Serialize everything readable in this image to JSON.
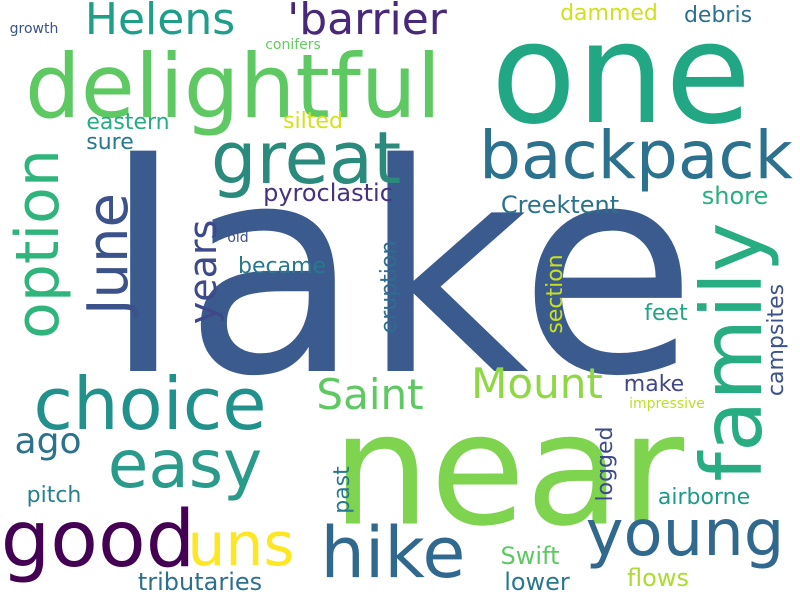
{
  "words": [
    {
      "text": "lake",
      "color": "#3b5b8f"
    },
    {
      "text": "near",
      "color": "#7ed34f"
    },
    {
      "text": "one",
      "color": "#22a784"
    },
    {
      "text": "delightful",
      "color": "#5ec962"
    },
    {
      "text": "great",
      "color": "#2a8b7c"
    },
    {
      "text": "backpack",
      "color": "#2c718e"
    },
    {
      "text": "choice",
      "color": "#21918c"
    },
    {
      "text": "family",
      "color": "#27ad81"
    },
    {
      "text": "good",
      "color": "#440154"
    },
    {
      "text": "uns",
      "color": "#fde725"
    },
    {
      "text": "hike",
      "color": "#30688e"
    },
    {
      "text": "young",
      "color": "#31688e"
    },
    {
      "text": "easy",
      "color": "#2a9a8a"
    },
    {
      "text": "option",
      "color": "#2fb47c"
    },
    {
      "text": "June",
      "color": "#3b528b"
    },
    {
      "text": "Helens",
      "color": "#1f9e89"
    },
    {
      "text": "'barrier",
      "color": "#482878"
    },
    {
      "text": "Mount",
      "color": "#8fd744"
    },
    {
      "text": "Saint",
      "color": "#5ec962"
    },
    {
      "text": "years",
      "color": "#3e4989"
    },
    {
      "text": "ago",
      "color": "#2c728e"
    },
    {
      "text": "pyroclastic",
      "color": "#46327e"
    },
    {
      "text": "Creektent",
      "color": "#2c728e"
    },
    {
      "text": "campsites",
      "color": "#3b528b"
    },
    {
      "text": "eruption",
      "color": "#2f6c8e"
    },
    {
      "text": "section",
      "color": "#c8e020"
    },
    {
      "text": "became",
      "color": "#2a788e"
    },
    {
      "text": "make",
      "color": "#404688"
    },
    {
      "text": "feet",
      "color": "#20a386"
    },
    {
      "text": "shore",
      "color": "#29af7f"
    },
    {
      "text": "eastern",
      "color": "#26ad81"
    },
    {
      "text": "silted",
      "color": "#d2e21b"
    },
    {
      "text": "sure",
      "color": "#2a788e"
    },
    {
      "text": "dammed",
      "color": "#d0e11c"
    },
    {
      "text": "debris",
      "color": "#2c728e"
    },
    {
      "text": "conifers",
      "color": "#63cb5f"
    },
    {
      "text": "growth",
      "color": "#3b528b"
    },
    {
      "text": "old",
      "color": "#3b528b"
    },
    {
      "text": "impressive",
      "color": "#bddf26"
    },
    {
      "text": "pitch",
      "color": "#26818e"
    },
    {
      "text": "past",
      "color": "#2a788e"
    },
    {
      "text": "logged",
      "color": "#3e4a89"
    },
    {
      "text": "airborne",
      "color": "#1f9a8a"
    },
    {
      "text": "Swift",
      "color": "#5ec962"
    },
    {
      "text": "lower",
      "color": "#2a788e"
    },
    {
      "text": "flows",
      "color": "#addc30"
    },
    {
      "text": "tributaries",
      "color": "#2e6f8e"
    }
  ]
}
